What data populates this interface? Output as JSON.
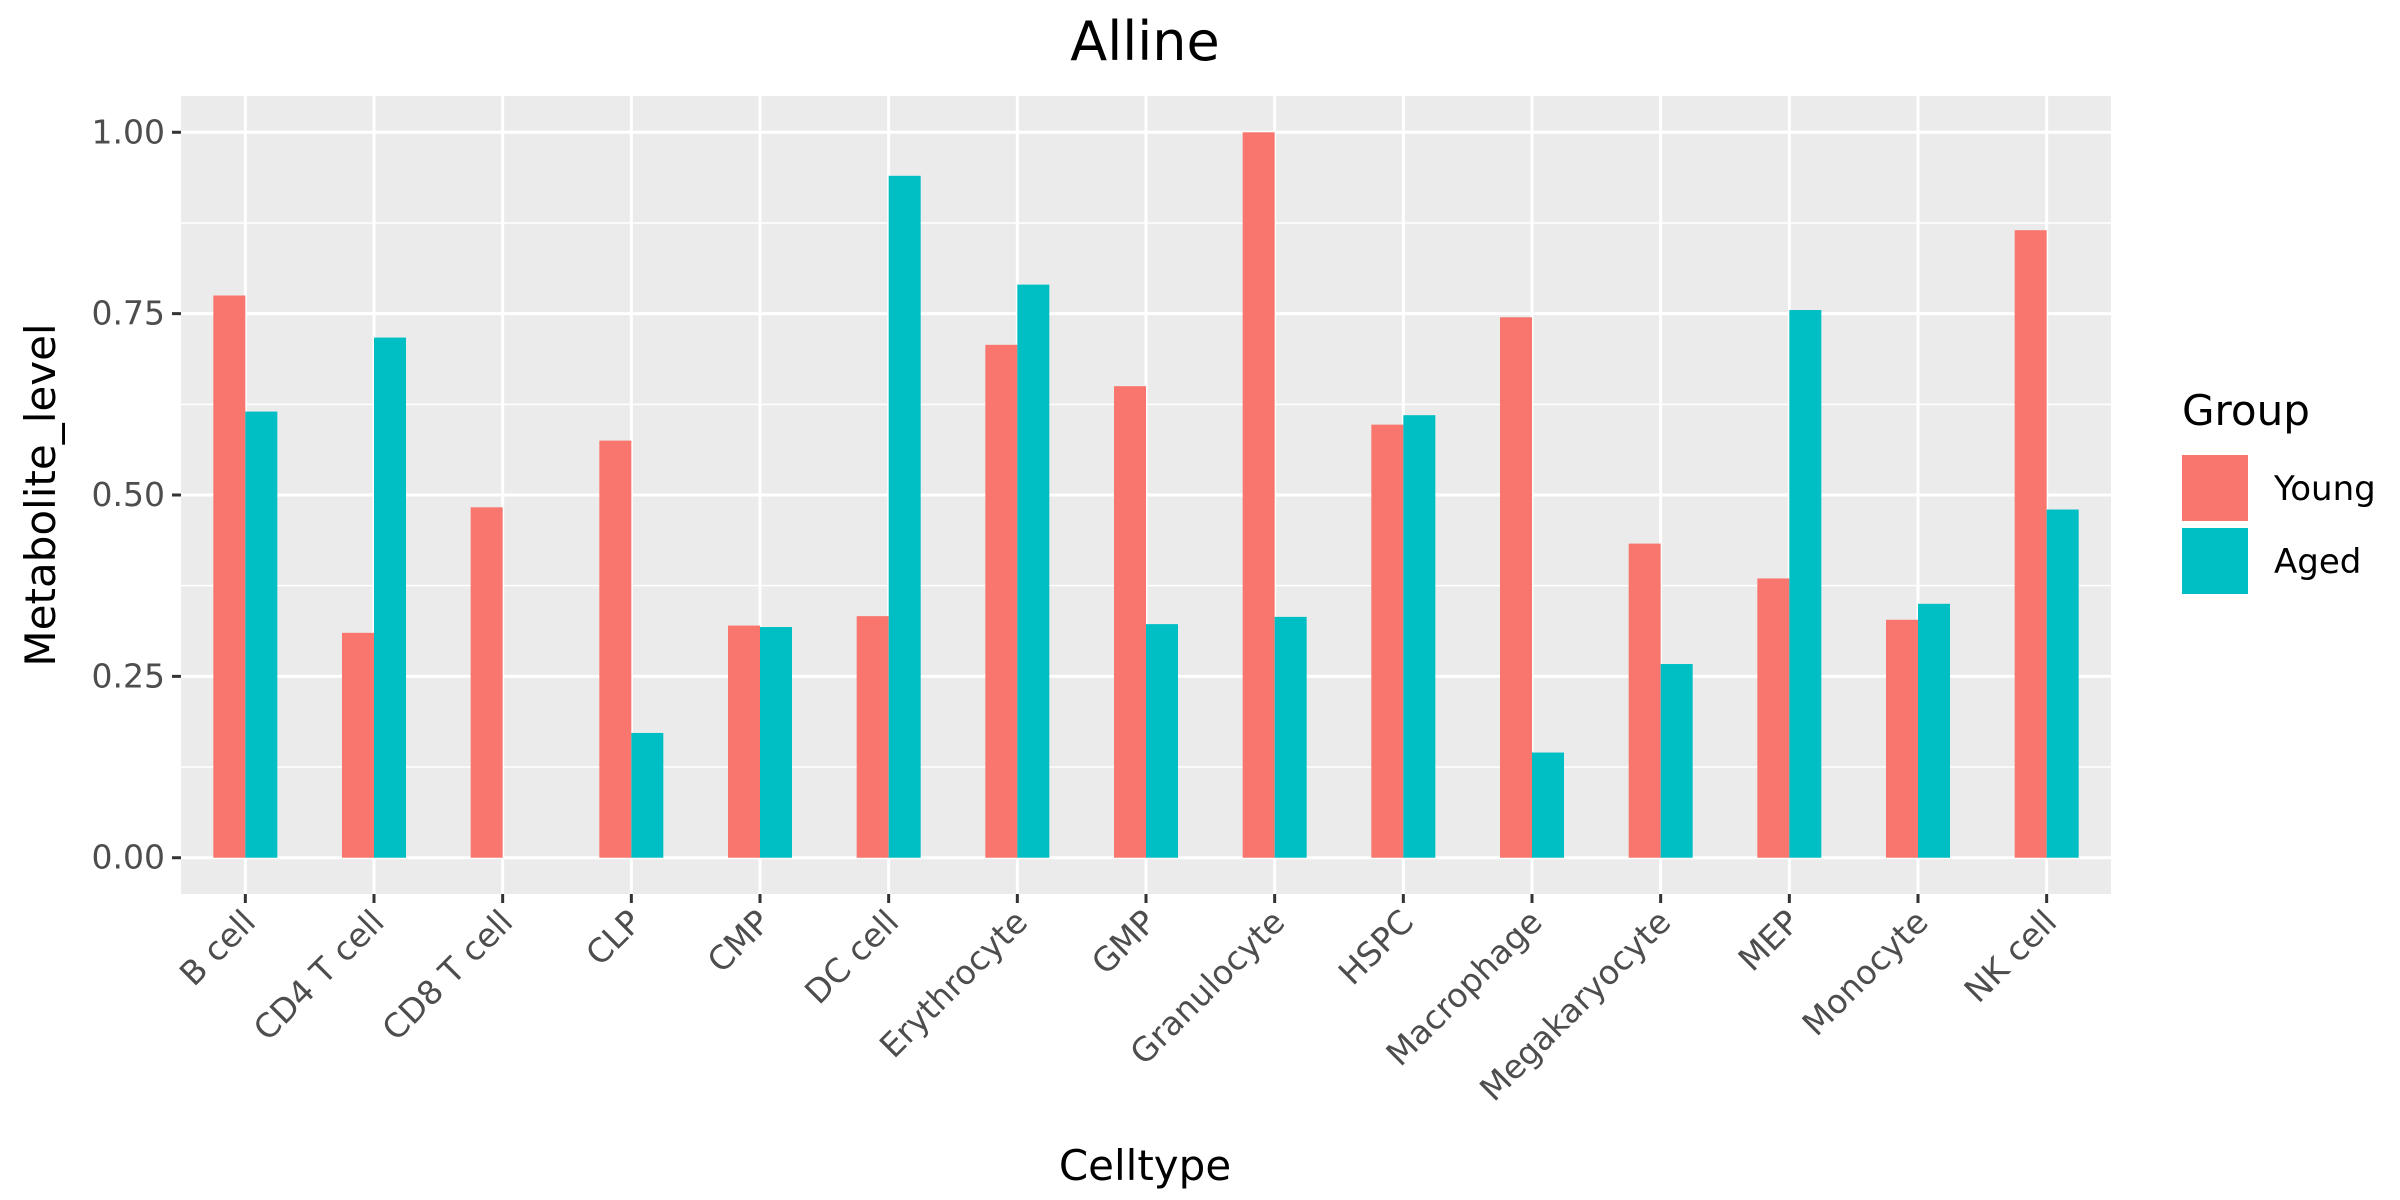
{
  "chart_data": {
    "type": "bar",
    "title": "Alline",
    "xlabel": "Celltype",
    "ylabel": "Metabolite_level",
    "ylim": [
      -0.05,
      1.05
    ],
    "yticks": [
      "0.00",
      "0.25",
      "0.50",
      "0.75",
      "1.00"
    ],
    "ytick_values": [
      0,
      0.25,
      0.5,
      0.75,
      1.0
    ],
    "grid": true,
    "legend": {
      "title": "Group",
      "placement": "right"
    },
    "categories": [
      "B cell",
      "CD4 T cell",
      "CD8 T cell",
      "CLP",
      "CMP",
      "DC cell",
      "Erythrocyte",
      "GMP",
      "Granulocyte",
      "HSPC",
      "Macrophage",
      "Megakaryocyte",
      "MEP",
      "Monocyte",
      "NK cell"
    ],
    "series": [
      {
        "name": "Young",
        "color": "#F8766D",
        "values": [
          0.775,
          0.31,
          0.483,
          0.575,
          0.32,
          0.333,
          0.707,
          0.65,
          1.0,
          0.597,
          0.745,
          0.433,
          0.385,
          0.328,
          0.865
        ]
      },
      {
        "name": "Aged",
        "color": "#00BFC4",
        "values": [
          0.615,
          0.717,
          0.0,
          0.172,
          0.318,
          0.94,
          0.79,
          0.322,
          0.332,
          0.61,
          0.145,
          0.267,
          0.755,
          0.35,
          0.48
        ]
      }
    ]
  }
}
